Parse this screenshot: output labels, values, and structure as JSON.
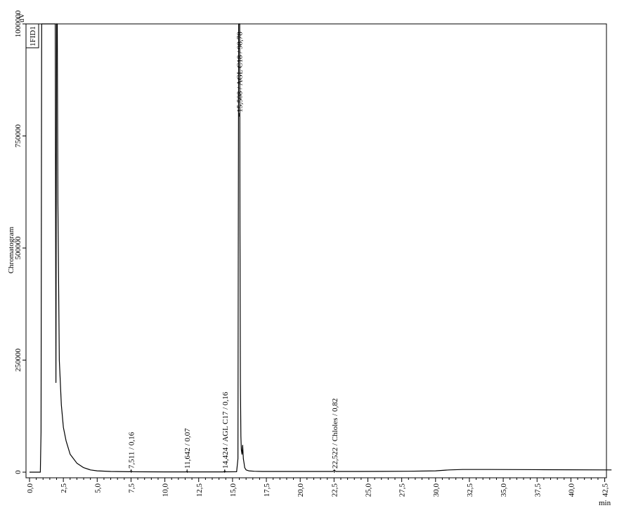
{
  "chart_data": {
    "type": "line",
    "title": "",
    "xlabel": "min",
    "ylabel": "Chromatogram",
    "yunit": "uV",
    "detector_label": "1FID1",
    "xlim": [
      0,
      43
    ],
    "ylim": [
      -5000,
      1000000
    ],
    "xticks": [
      0,
      2.5,
      5,
      7.5,
      10,
      12.5,
      15,
      17.5,
      20,
      22.5,
      25,
      27.5,
      30,
      32.5,
      35,
      37.5,
      40,
      42.5
    ],
    "xtick_labels": [
      "0,0",
      "2,5",
      "5,0",
      "7,5",
      "10,0",
      "12,5",
      "15,0",
      "17,5",
      "20,0",
      "22,5",
      "25,0",
      "27,5",
      "30,0",
      "32,5",
      "35,0",
      "37,5",
      "40,0",
      "42,5"
    ],
    "yticks": [
      0,
      250000,
      500000,
      750000,
      1000000
    ],
    "ytick_labels": [
      "0",
      "250000",
      "500000",
      "750000",
      "1000000"
    ],
    "series": [
      {
        "color": "#000000",
        "x": [
          0,
          0.8,
          0.85,
          0.9,
          0.95,
          1.0,
          1.9,
          1.95,
          2.0,
          2.05,
          2.1,
          2.2,
          2.35,
          2.5,
          2.7,
          3.0,
          3.5,
          4.0,
          4.5,
          5.0,
          6.0,
          7.4,
          7.5,
          7.6,
          8.5,
          10.0,
          11.55,
          11.64,
          11.7,
          13.0,
          14.35,
          14.42,
          14.5,
          15.3,
          15.4,
          15.45,
          15.5,
          15.53,
          15.55,
          15.58,
          15.62,
          15.65,
          15.7,
          15.75,
          15.8,
          15.85,
          15.9,
          16.0,
          16.2,
          16.6,
          17.2,
          18.0,
          20.0,
          22.4,
          22.52,
          22.65,
          24.0,
          26.0,
          28.0,
          30.0,
          31.0,
          32.0,
          34.0,
          38.0,
          43.0
        ],
        "y": [
          0,
          0,
          90000,
          1000000,
          1000000,
          1000000,
          1000000,
          200000,
          1000000,
          1000000,
          600000,
          250000,
          150000,
          100000,
          70000,
          40000,
          20000,
          10000,
          5000,
          3000,
          1500,
          1000,
          3000,
          1000,
          800,
          700,
          700,
          2000,
          700,
          600,
          600,
          3000,
          800,
          1000,
          30000,
          1000000,
          1000000,
          1000000,
          530000,
          200000,
          80000,
          50000,
          40000,
          60000,
          30000,
          20000,
          10000,
          5000,
          3000,
          2000,
          1500,
          1500,
          1500,
          1500,
          4000,
          1500,
          1500,
          1800,
          2000,
          3000,
          5000,
          6000,
          6000,
          5500,
          5000
        ]
      }
    ],
    "annotations": [
      {
        "x": 7.511,
        "text": "7,511 / 0,16"
      },
      {
        "x": 11.642,
        "text": "11,642 / 0,07"
      },
      {
        "x": 14.424,
        "text": "14,424 / AGL C17 / 0,16"
      },
      {
        "x": 15.508,
        "text": "15,508 / AGL C18 / 98,78"
      },
      {
        "x": 22.522,
        "text": "22,522 / Chloles / 0,82"
      }
    ]
  }
}
